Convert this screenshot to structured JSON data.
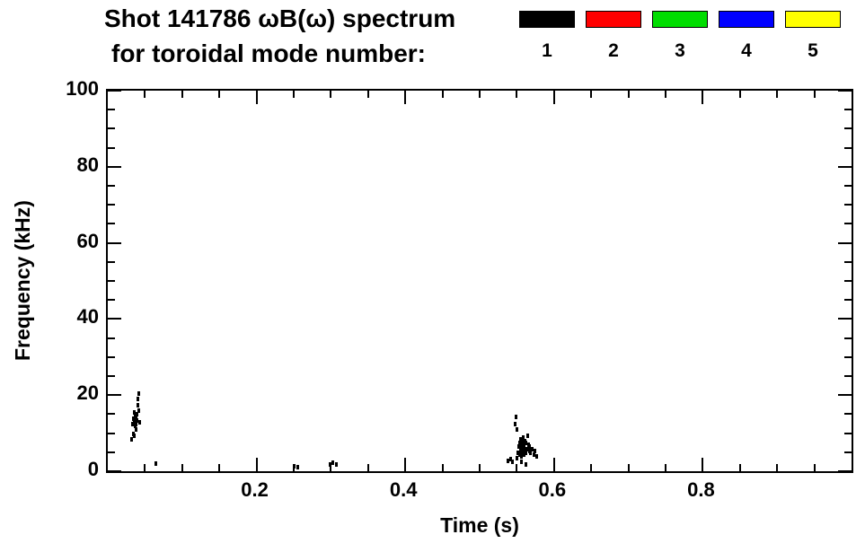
{
  "header": {
    "title_line1": "Shot 141786 ωB(ω) spectrum",
    "title_line2": "for toroidal mode number:"
  },
  "legend": {
    "items": [
      {
        "label": "1",
        "color": "#000000"
      },
      {
        "label": "2",
        "color": "#ff0000"
      },
      {
        "label": "3",
        "color": "#00dd00"
      },
      {
        "label": "4",
        "color": "#0000ff"
      },
      {
        "label": "5",
        "color": "#ffff00"
      }
    ]
  },
  "chart_data": {
    "type": "scatter",
    "title": "Shot 141786 ωB(ω) spectrum for toroidal mode number",
    "xlabel": "Time (s)",
    "ylabel": "Frequency (kHz)",
    "xlim": [
      0,
      1.0
    ],
    "ylim": [
      0,
      100
    ],
    "x_major_ticks": [
      0.2,
      0.4,
      0.6,
      0.8
    ],
    "x_minor_step": 0.05,
    "y_major_ticks": [
      0,
      20,
      40,
      60,
      80,
      100
    ],
    "y_minor_step": 5,
    "grid": false,
    "legend_position": "top-right",
    "series": [
      {
        "name": "1",
        "color": "#000000",
        "points": [
          [
            0.031,
            8.5
          ],
          [
            0.033,
            12.5
          ],
          [
            0.034,
            14
          ],
          [
            0.034,
            10
          ],
          [
            0.035,
            13
          ],
          [
            0.035,
            15.5
          ],
          [
            0.035,
            9.5
          ],
          [
            0.036,
            12
          ],
          [
            0.036,
            14.5
          ],
          [
            0.037,
            13
          ],
          [
            0.037,
            11
          ],
          [
            0.038,
            14
          ],
          [
            0.038,
            12.5
          ],
          [
            0.039,
            15
          ],
          [
            0.039,
            13.5
          ],
          [
            0.04,
            19
          ],
          [
            0.04,
            17.5
          ],
          [
            0.041,
            20.5
          ],
          [
            0.041,
            16
          ],
          [
            0.042,
            13
          ],
          [
            0.064,
            2.2
          ],
          [
            0.25,
            1.3
          ],
          [
            0.255,
            1.1
          ],
          [
            0.298,
            2.0
          ],
          [
            0.302,
            2.3
          ],
          [
            0.307,
            1.9
          ],
          [
            0.538,
            2.8
          ],
          [
            0.541,
            3.2
          ],
          [
            0.544,
            2.5
          ],
          [
            0.547,
            12.5
          ],
          [
            0.548,
            14.5
          ],
          [
            0.549,
            11
          ],
          [
            0.55,
            3.5
          ],
          [
            0.551,
            5
          ],
          [
            0.552,
            6.5
          ],
          [
            0.553,
            4.5
          ],
          [
            0.553,
            7.5
          ],
          [
            0.554,
            5.5
          ],
          [
            0.554,
            8.5
          ],
          [
            0.555,
            6
          ],
          [
            0.555,
            4
          ],
          [
            0.556,
            7
          ],
          [
            0.556,
            5
          ],
          [
            0.556,
            2.5
          ],
          [
            0.557,
            8
          ],
          [
            0.557,
            6.5
          ],
          [
            0.558,
            5.5
          ],
          [
            0.558,
            9
          ],
          [
            0.559,
            7
          ],
          [
            0.559,
            4.5
          ],
          [
            0.56,
            6
          ],
          [
            0.56,
            8
          ],
          [
            0.561,
            5
          ],
          [
            0.561,
            2
          ],
          [
            0.562,
            7.5
          ],
          [
            0.563,
            6
          ],
          [
            0.564,
            9.5
          ],
          [
            0.565,
            7
          ],
          [
            0.566,
            5.5
          ],
          [
            0.567,
            6.5
          ],
          [
            0.568,
            5
          ],
          [
            0.57,
            6
          ],
          [
            0.572,
            4.5
          ],
          [
            0.574,
            5.5
          ],
          [
            0.576,
            4
          ]
        ]
      },
      {
        "name": "2",
        "color": "#ff0000",
        "points": []
      },
      {
        "name": "3",
        "color": "#00dd00",
        "points": []
      },
      {
        "name": "4",
        "color": "#0000ff",
        "points": []
      },
      {
        "name": "5",
        "color": "#ffff00",
        "points": []
      }
    ]
  }
}
